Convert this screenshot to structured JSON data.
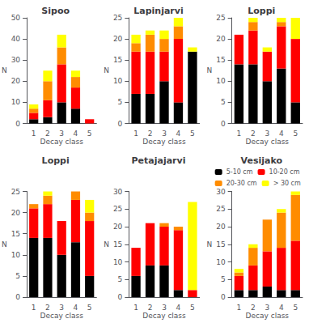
{
  "chart_data": [
    {
      "type": "bar",
      "title": "Sipoo",
      "xlabel": "Decay class",
      "ylabel": "N",
      "categories": [
        "1",
        "2",
        "3",
        "4",
        "5"
      ],
      "stacked": true,
      "grid": false,
      "series": [
        {
          "color": "#000000",
          "values": [
            2,
            3,
            10,
            7,
            0
          ]
        },
        {
          "color": "#FF0000",
          "values": [
            3,
            8,
            18,
            10,
            2
          ]
        },
        {
          "color": "#FF8C00",
          "values": [
            2,
            9,
            8,
            5,
            0
          ]
        },
        {
          "color": "#FFFF00",
          "values": [
            2,
            5,
            6,
            3,
            0
          ]
        }
      ],
      "ylim": [
        0,
        50
      ],
      "yticks": [
        0,
        10,
        20,
        30,
        40,
        50
      ]
    },
    {
      "type": "bar",
      "title": "Lapinjarvi",
      "xlabel": "Decay class",
      "ylabel": "N",
      "categories": [
        "1",
        "2",
        "3",
        "4",
        "5"
      ],
      "stacked": true,
      "grid": false,
      "series": [
        {
          "color": "#000000",
          "values": [
            7,
            7,
            10,
            5,
            17
          ]
        },
        {
          "color": "#FF0000",
          "values": [
            10,
            10,
            7,
            15,
            0
          ]
        },
        {
          "color": "#FF8C00",
          "values": [
            2,
            4,
            3,
            3,
            0
          ]
        },
        {
          "color": "#FFFF00",
          "values": [
            2,
            1,
            2,
            2,
            1
          ]
        }
      ],
      "ylim": [
        0,
        25
      ],
      "yticks": [
        0,
        5,
        10,
        15,
        20,
        25
      ]
    },
    {
      "type": "bar",
      "title": "Loppi",
      "xlabel": "Decay class",
      "ylabel": "N",
      "categories": [
        "1",
        "2",
        "3",
        "4",
        "5"
      ],
      "stacked": true,
      "grid": false,
      "series": [
        {
          "color": "#000000",
          "values": [
            14,
            14,
            10,
            13,
            5
          ]
        },
        {
          "color": "#FF0000",
          "values": [
            7,
            8,
            7,
            10,
            15
          ]
        },
        {
          "color": "#FF8C00",
          "values": [
            0,
            2,
            0,
            1,
            0
          ]
        },
        {
          "color": "#FFFF00",
          "values": [
            0,
            1,
            1,
            1,
            5
          ]
        }
      ],
      "ylim": [
        0,
        25
      ],
      "yticks": [
        0,
        5,
        10,
        15,
        20,
        25
      ]
    },
    {
      "type": "bar",
      "title": "Loppi",
      "xlabel": "Decay class",
      "ylabel": "N",
      "categories": [
        "1",
        "2",
        "3",
        "4",
        "5"
      ],
      "stacked": true,
      "grid": false,
      "series": [
        {
          "color": "#000000",
          "values": [
            14,
            14,
            10,
            13,
            5
          ]
        },
        {
          "color": "#FF0000",
          "values": [
            7,
            8,
            8,
            10,
            13
          ]
        },
        {
          "color": "#FF8C00",
          "values": [
            1,
            2,
            0,
            2,
            2
          ]
        },
        {
          "color": "#FFFF00",
          "values": [
            0,
            1,
            0,
            0,
            3
          ]
        }
      ],
      "ylim": [
        0,
        25
      ],
      "yticks": [
        0,
        5,
        10,
        15,
        20,
        25
      ]
    },
    {
      "type": "bar",
      "title": "Petajajarvi",
      "xlabel": "Decay class",
      "ylabel": "N",
      "categories": [
        "1",
        "2",
        "3",
        "4",
        "5"
      ],
      "stacked": true,
      "grid": false,
      "series": [
        {
          "color": "#000000",
          "values": [
            6,
            9,
            9,
            2,
            0
          ]
        },
        {
          "color": "#FF0000",
          "values": [
            8,
            12,
            11,
            17,
            2
          ]
        },
        {
          "color": "#FF8C00",
          "values": [
            0,
            0,
            1,
            1,
            0
          ]
        },
        {
          "color": "#FFFF00",
          "values": [
            0,
            0,
            0,
            0,
            25
          ]
        }
      ],
      "ylim": [
        0,
        30
      ],
      "yticks": [
        0,
        5,
        10,
        15,
        20,
        25,
        30
      ]
    },
    {
      "type": "bar",
      "title": "Vesijako",
      "xlabel": "Decay class",
      "ylabel": "N",
      "categories": [
        "1",
        "2",
        "3",
        "4",
        "5"
      ],
      "stacked": true,
      "grid": false,
      "legend": "upper left",
      "series": [
        {
          "name": "5-10 cm",
          "color": "#000000",
          "values": [
            2,
            2,
            3,
            2,
            2
          ]
        },
        {
          "name": "10-20 cm",
          "color": "#FF0000",
          "values": [
            4,
            7,
            10,
            12,
            14
          ]
        },
        {
          "name": "20-30 cm",
          "color": "#FF8C00",
          "values": [
            1,
            5,
            9,
            10,
            13
          ]
        },
        {
          "name": "> 30 cm",
          "color": "#FFFF00",
          "values": [
            1,
            1,
            0,
            1,
            1
          ]
        }
      ],
      "ylim": [
        0,
        30
      ],
      "yticks": [
        0,
        5,
        10,
        15,
        20,
        25,
        30
      ]
    }
  ]
}
